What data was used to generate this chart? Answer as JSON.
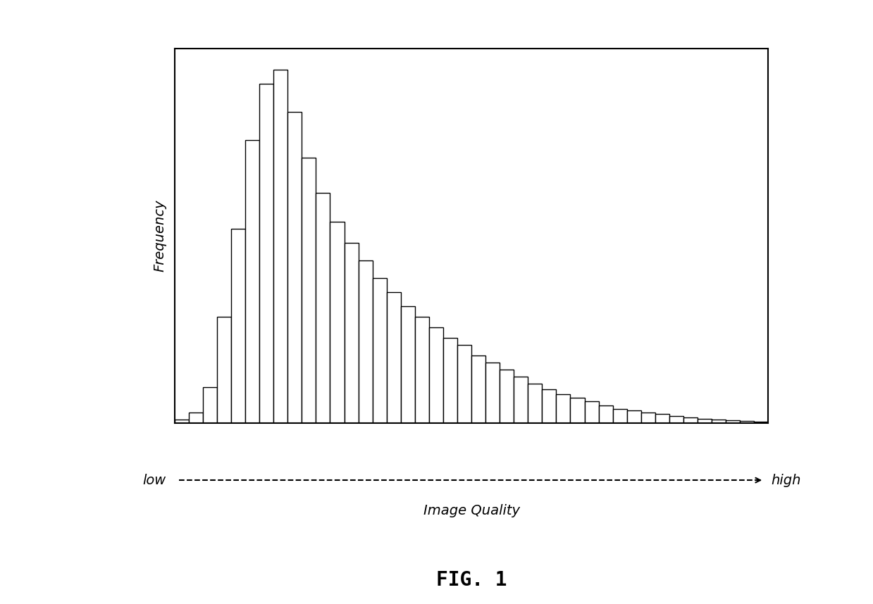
{
  "title": "FIG. 1",
  "ylabel": "Frequency",
  "xlabel": "Image Quality",
  "xlabel_low": "low",
  "xlabel_high": "high",
  "background_color": "#ffffff",
  "bar_facecolor": "#ffffff",
  "bar_edgecolor": "#000000",
  "bar_linewidth": 1.0,
  "bar_heights": [
    1,
    3,
    10,
    30,
    55,
    80,
    96,
    100,
    88,
    75,
    65,
    57,
    51,
    46,
    41,
    37,
    33,
    30,
    27,
    24,
    22,
    19,
    17,
    15,
    13,
    11,
    9.5,
    8,
    7,
    6,
    5,
    4,
    3.5,
    3,
    2.5,
    2,
    1.5,
    1.2,
    1,
    0.7,
    0.5,
    0.3
  ],
  "arrow_color": "#000000",
  "arrow_linewidth": 1.5,
  "fig_label_fontsize": 20,
  "fig_label_fontweight": "bold",
  "axis_label_fontsize": 14,
  "low_high_fontsize": 14,
  "spine_linewidth": 1.5
}
